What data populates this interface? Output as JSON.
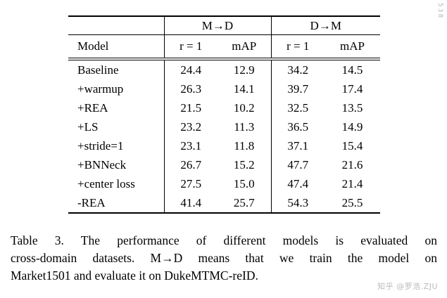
{
  "table": {
    "group_headers": [
      "M→D",
      "D→M"
    ],
    "col_headers": [
      "Model",
      "r = 1",
      "mAP",
      "r = 1",
      "mAP"
    ],
    "rows": [
      {
        "model": "Baseline",
        "values": [
          "24.4",
          "12.9",
          "34.2",
          "14.5"
        ]
      },
      {
        "model": "+warmup",
        "values": [
          "26.3",
          "14.1",
          "39.7",
          "17.4"
        ]
      },
      {
        "model": "+REA",
        "values": [
          "21.5",
          "10.2",
          "32.5",
          "13.5"
        ]
      },
      {
        "model": "+LS",
        "values": [
          "23.2",
          "11.3",
          "36.5",
          "14.9"
        ]
      },
      {
        "model": "+stride=1",
        "values": [
          "23.1",
          "11.8",
          "37.1",
          "15.4"
        ]
      },
      {
        "model": "+BNNeck",
        "values": [
          "26.7",
          "15.2",
          "47.7",
          "21.6"
        ]
      },
      {
        "model": "+center loss",
        "values": [
          "27.5",
          "15.0",
          "47.4",
          "21.4"
        ]
      },
      {
        "model": "-REA",
        "values": [
          "41.4",
          "25.7",
          "54.3",
          "25.5"
        ]
      }
    ]
  },
  "caption": {
    "lines": [
      "Table 3. The performance of different models is evaluated on",
      "cross-domain datasets. M→D means that we train the model on",
      "Market1501 and evaluate it on DukeMTMC-reID."
    ]
  },
  "watermark": {
    "text": "知乎 @罗浩.ZJU"
  },
  "edge_marks": {
    "text": "538"
  }
}
